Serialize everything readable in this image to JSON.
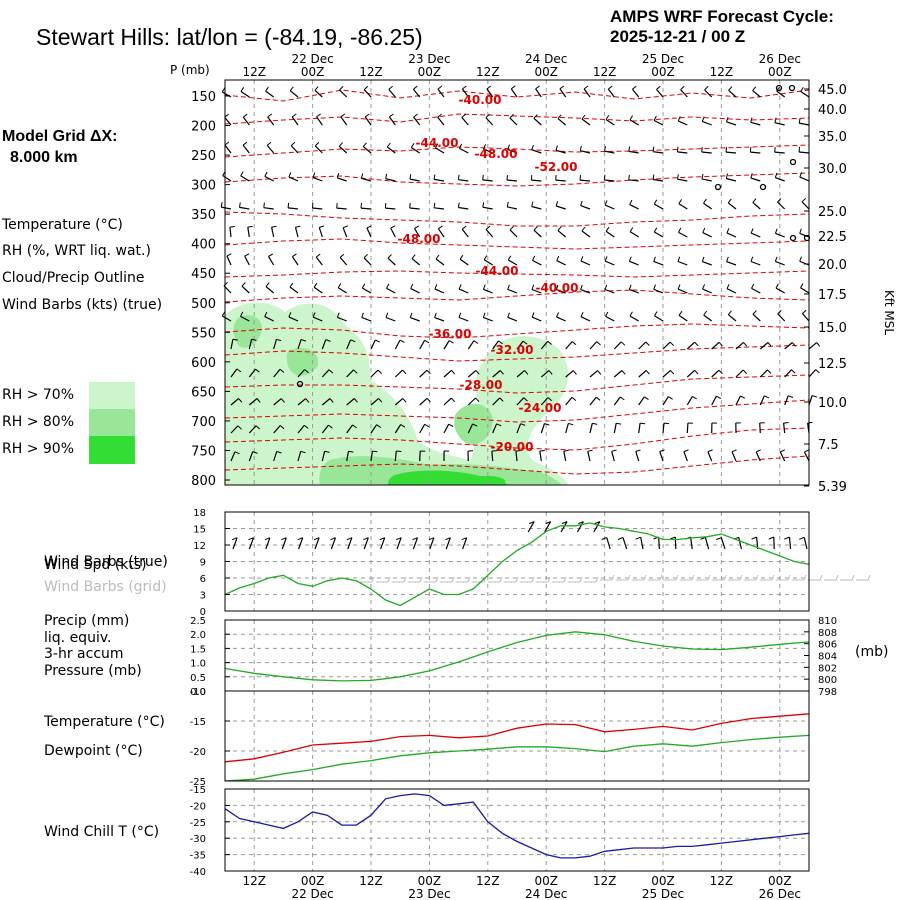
{
  "header": {
    "title": "Stewart Hills:  lat/lon = (-84.19, -86.25)",
    "cycle_label": "AMPS WRF Forecast Cycle:",
    "cycle_value": "2025-12-21 / 00  Z"
  },
  "left_panel": {
    "model_grid_label": "Model Grid ΔX:",
    "model_grid_value": "8.000 km",
    "legend": [
      {
        "label": "Temperature (°C)",
        "color": "#dd0000"
      },
      {
        "label": "RH (%, WRT liq. wat.)",
        "color": "#22aa22"
      },
      {
        "label": "Cloud/Precip Outline",
        "color": "#6633aa"
      },
      {
        "label": "Wind Barbs (kts) (true)",
        "color": "#000000"
      }
    ],
    "rh_scale": [
      {
        "label": "RH > 70%",
        "color": "#ccf5cc"
      },
      {
        "label": "RH > 80%",
        "color": "#99e699"
      },
      {
        "label": "RH > 90%",
        "color": "#33dd33"
      }
    ]
  },
  "time_axis": {
    "hour_labels": [
      "12Z",
      "00Z",
      "12Z",
      "00Z",
      "12Z",
      "00Z",
      "12Z",
      "00Z",
      "12Z",
      "00Z"
    ],
    "day_labels": [
      "22 Dec",
      "23 Dec",
      "24 Dec",
      "25 Dec",
      "26 Dec"
    ]
  },
  "colors": {
    "temperature": "#dd0000",
    "rh": "#22aa22",
    "cloud": "#6633aa",
    "wind_chill": "#1a1aaa",
    "rh70": "#ccf5cc",
    "rh80": "#99e699",
    "rh90": "#33dd33",
    "grid": "#999999"
  },
  "chart_data": [
    {
      "type": "heatmap",
      "panel": "cross-section",
      "title": "Stewart Hills:  lat/lon = (-84.19, -86.25)",
      "x_hours": [
        0,
        120
      ],
      "ylabel": "P (mb)",
      "y_ticks": [
        "150",
        "200",
        "250",
        "300",
        "350",
        "400",
        "450",
        "500",
        "550",
        "600",
        "650",
        "700",
        "750",
        "800"
      ],
      "right_ticks": [
        "45.0",
        "40.0",
        "35.0",
        "30.0",
        "25.0",
        "22.5",
        "20.0",
        "17.5",
        "15.0",
        "12.5",
        "10.0",
        "7.5",
        "5.39"
      ],
      "right_axis_label": "Kft MSL",
      "contour_labels": [
        "-40.00",
        "-44.00",
        "-48.00",
        "-52.00",
        "-48.00",
        "-44.00",
        "-40.00",
        "-36.00",
        "-32.00",
        "-28.00",
        "-24.00",
        "-20.00"
      ],
      "wind_barb_note": "Wind Barbs (kts) (true)"
    },
    {
      "type": "line",
      "panel": "wind",
      "labels": [
        "Wind Spd (kts)",
        "Wind Barbs (true)",
        "Wind Barbs (grid)"
      ],
      "y_ticks": [
        "18",
        "15",
        "12",
        "9",
        "6",
        "3",
        "0"
      ],
      "ylim": [
        0,
        18
      ],
      "x": [
        0,
        3,
        6,
        9,
        12,
        15,
        18,
        21,
        24,
        27,
        30,
        33,
        36,
        39,
        42,
        45,
        48,
        51,
        54,
        57,
        60,
        63,
        66,
        69,
        72,
        75,
        78,
        81,
        84,
        87,
        90,
        93,
        96,
        99,
        102,
        105,
        108,
        111,
        114,
        117,
        120
      ],
      "series": [
        {
          "name": "Wind Spd (kts)",
          "values": [
            3,
            4.2,
            5,
            6,
            6.5,
            5,
            4.5,
            5.5,
            6,
            5.5,
            4,
            2,
            1,
            2.5,
            4,
            3,
            3,
            4,
            6.5,
            9,
            11,
            12.5,
            14.5,
            15.5,
            15.5,
            16,
            15.3,
            15,
            14.5,
            14,
            13,
            13,
            13.3,
            13.5,
            14,
            13,
            12,
            11,
            10,
            9,
            8.5
          ]
        }
      ]
    },
    {
      "type": "line",
      "panel": "precip-pressure",
      "labels": [
        "Precip (mm)",
        "liq. equiv.",
        "3-hr accum",
        "Pressure (mb)"
      ],
      "right_label": "(mb)",
      "y_ticks": [
        "2.5",
        "2.0",
        "1.5",
        "1.0",
        "0.5",
        "0.0"
      ],
      "right_ticks": [
        "810",
        "808",
        "806",
        "804",
        "802",
        "800",
        "798"
      ],
      "ylim": [
        0,
        2.5
      ],
      "right_ylim": [
        798,
        810
      ],
      "x": [
        0,
        6,
        12,
        18,
        24,
        30,
        36,
        42,
        48,
        54,
        60,
        66,
        72,
        78,
        84,
        90,
        96,
        102,
        108,
        114,
        120
      ],
      "series": [
        {
          "name": "Pressure (mb)",
          "values": [
            801.8,
            801.0,
            800.4,
            799.9,
            799.7,
            799.8,
            800.4,
            801.4,
            802.9,
            804.6,
            806.2,
            807.4,
            808.0,
            807.5,
            806.4,
            805.6,
            805.1,
            805.0,
            805.4,
            805.9,
            806.3
          ]
        }
      ]
    },
    {
      "type": "line",
      "panel": "temperature",
      "labels": [
        "Temperature (°C)",
        "Dewpoint (°C)"
      ],
      "y_ticks": [
        "-10",
        "-15",
        "-20",
        "-25"
      ],
      "ylim": [
        -25,
        -10
      ],
      "x": [
        0,
        6,
        12,
        18,
        24,
        30,
        36,
        42,
        48,
        54,
        60,
        66,
        72,
        78,
        84,
        90,
        96,
        102,
        108,
        114,
        120
      ],
      "series": [
        {
          "name": "Temperature (°C)",
          "values": [
            -21.8,
            -21.3,
            -20.2,
            -19.0,
            -18.7,
            -18.4,
            -17.6,
            -17.4,
            -17.8,
            -17.5,
            -16.2,
            -15.5,
            -15.6,
            -16.8,
            -16.4,
            -15.9,
            -16.5,
            -15.4,
            -14.6,
            -14.2,
            -13.8
          ]
        },
        {
          "name": "Dewpoint (°C)",
          "values": [
            -25.0,
            -24.7,
            -23.8,
            -23.1,
            -22.2,
            -21.6,
            -20.8,
            -20.3,
            -20.0,
            -19.7,
            -19.3,
            -19.3,
            -19.6,
            -20.1,
            -19.2,
            -18.8,
            -19.2,
            -18.6,
            -18.1,
            -17.7,
            -17.4
          ]
        }
      ]
    },
    {
      "type": "line",
      "panel": "wind-chill",
      "labels": [
        "Wind Chill T (°C)"
      ],
      "y_ticks": [
        "-15",
        "-20",
        "-25",
        "-30",
        "-35",
        "-40"
      ],
      "ylim": [
        -40,
        -15
      ],
      "x": [
        0,
        3,
        6,
        9,
        12,
        15,
        18,
        21,
        24,
        27,
        30,
        33,
        36,
        39,
        42,
        45,
        48,
        51,
        54,
        57,
        60,
        63,
        66,
        69,
        72,
        75,
        78,
        81,
        84,
        87,
        90,
        93,
        96,
        99,
        102,
        105,
        108,
        111,
        114,
        117,
        120
      ],
      "series": [
        {
          "name": "Wind Chill T (°C)",
          "values": [
            -21,
            -24,
            -25,
            -26,
            -27,
            -25,
            -22,
            -23,
            -26,
            -26,
            -23,
            -18,
            -17,
            -16.5,
            -17,
            -20,
            -19.5,
            -19,
            -25,
            -28.5,
            -31,
            -33,
            -35,
            -36,
            -36,
            -35.5,
            -34,
            -33.5,
            -33,
            -33,
            -33,
            -32.5,
            -32.5,
            -32,
            -31.5,
            -31,
            -30.5,
            -30,
            -29.5,
            -29,
            -28.5
          ]
        }
      ]
    }
  ]
}
